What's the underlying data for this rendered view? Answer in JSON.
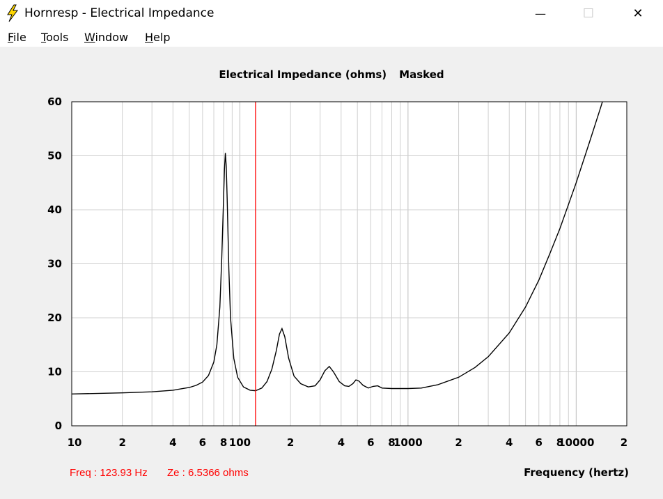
{
  "window": {
    "title": "Hornresp - Electrical Impedance",
    "minimize_glyph": "—",
    "maximize_glyph": "☐",
    "close_glyph": "✕",
    "icon": "lightning-bolt-icon"
  },
  "menu": [
    {
      "key": "F",
      "rest": "ile"
    },
    {
      "key": "T",
      "rest": "ools"
    },
    {
      "key": "W",
      "rest": "indow"
    },
    {
      "key": "H",
      "rest": "elp"
    }
  ],
  "chart_title": {
    "main": "Electrical Impedance (ohms)",
    "status": "Masked"
  },
  "readout": {
    "freq": "Freq : 123.93 Hz",
    "ze": "Ze : 6.5366 ohms"
  },
  "colors": {
    "curve": "#000000",
    "cursor": "#ff0000",
    "grid": "#d0d0d0",
    "grid_major": "#bcbcbc",
    "plot_bg": "#ffffff"
  },
  "chart_data": {
    "type": "line",
    "title": "Electrical Impedance (ohms)",
    "xlabel": "Frequency (hertz)",
    "ylabel": "",
    "x_scale": "log",
    "xlim": [
      10,
      20000
    ],
    "ylim": [
      0,
      60
    ],
    "grid": true,
    "y_ticks": [
      "0",
      "10",
      "20",
      "30",
      "40",
      "50",
      "60"
    ],
    "x_tick_labels": [
      {
        "value": 10,
        "label": "10"
      },
      {
        "value": 20,
        "label": "2"
      },
      {
        "value": 40,
        "label": "4"
      },
      {
        "value": 60,
        "label": "6"
      },
      {
        "value": 80,
        "label": "8"
      },
      {
        "value": 100,
        "label": "100"
      },
      {
        "value": 200,
        "label": "2"
      },
      {
        "value": 400,
        "label": "4"
      },
      {
        "value": 600,
        "label": "6"
      },
      {
        "value": 800,
        "label": "8"
      },
      {
        "value": 1000,
        "label": "1000"
      },
      {
        "value": 2000,
        "label": "2"
      },
      {
        "value": 4000,
        "label": "4"
      },
      {
        "value": 6000,
        "label": "6"
      },
      {
        "value": 8000,
        "label": "8"
      },
      {
        "value": 10000,
        "label": "10000"
      },
      {
        "value": 20000,
        "label": "2"
      }
    ],
    "cursor_x": 123.93,
    "series": [
      {
        "x": [
          10,
          20,
          30,
          40,
          50,
          55,
          60,
          65,
          70,
          73,
          76,
          78,
          80,
          81,
          82,
          83,
          84,
          86,
          88,
          92,
          97,
          105,
          115,
          124,
          135,
          145,
          155,
          165,
          172,
          178,
          185,
          195,
          210,
          230,
          255,
          280,
          300,
          320,
          340,
          360,
          390,
          420,
          445,
          470,
          490,
          510,
          540,
          580,
          620,
          660,
          700,
          800,
          1000,
          1200,
          1500,
          2000,
          2500,
          3000,
          4000,
          5000,
          6000,
          7000,
          8000,
          9000,
          10000,
          12000,
          14000,
          15000
        ],
        "y": [
          5.9,
          6.1,
          6.3,
          6.6,
          7.1,
          7.5,
          8.1,
          9.3,
          11.8,
          15.0,
          22.0,
          31.0,
          42.0,
          47.5,
          50.5,
          48.0,
          42.0,
          29.0,
          20.0,
          12.5,
          9.0,
          7.2,
          6.6,
          6.5,
          7.0,
          8.2,
          10.5,
          14.0,
          17.0,
          18.0,
          16.5,
          12.5,
          9.2,
          7.8,
          7.2,
          7.4,
          8.5,
          10.2,
          11.0,
          10.0,
          8.2,
          7.4,
          7.3,
          7.8,
          8.5,
          8.3,
          7.5,
          7.0,
          7.3,
          7.4,
          7.0,
          6.9,
          6.9,
          7.0,
          7.6,
          9.0,
          10.8,
          12.8,
          17.2,
          22.0,
          27.0,
          32.0,
          36.5,
          41.0,
          45.0,
          52.5,
          59.0,
          62.0
        ]
      }
    ]
  }
}
